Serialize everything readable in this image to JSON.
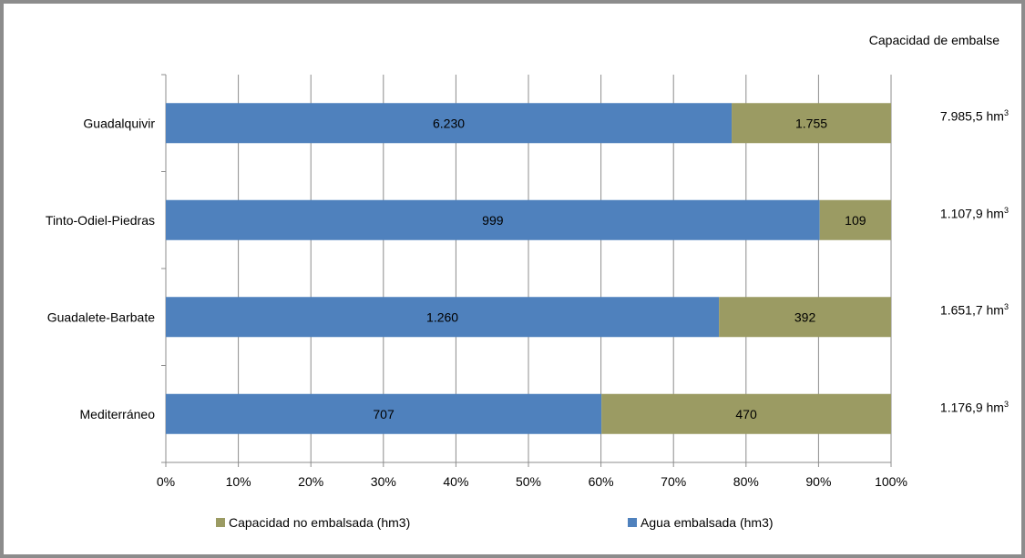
{
  "chart_data": {
    "type": "bar",
    "orientation": "horizontal",
    "stacked": "percent",
    "categories": [
      "Guadalquivir",
      "Tinto-Odiel-Piedras",
      "Guadalete-Barbate",
      "Mediterráneo"
    ],
    "series": [
      {
        "name": "Agua embalsada (hm3)",
        "values": [
          6230,
          999,
          1260,
          707
        ],
        "labels": [
          "6.230",
          "999",
          "1.260",
          "707"
        ],
        "color": "#4f81bd"
      },
      {
        "name": "Capacidad no embalsada  (hm3)",
        "values": [
          1755,
          109,
          392,
          470
        ],
        "labels": [
          "1.755",
          "109",
          "392",
          "470"
        ],
        "color": "#9b9b63"
      }
    ],
    "x_ticks": [
      "0%",
      "10%",
      "20%",
      "30%",
      "40%",
      "50%",
      "60%",
      "70%",
      "80%",
      "90%",
      "100%"
    ],
    "xlim": [
      0,
      100
    ],
    "grid": true,
    "legend_position": "bottom",
    "capacity_header": "Capacidad de embalse",
    "capacity_totals": [
      "7.985,5 hm",
      "1.107,9 hm",
      "1.651,7 hm",
      "1.176,9 hm"
    ],
    "capacity_unit_superscript": "3"
  }
}
